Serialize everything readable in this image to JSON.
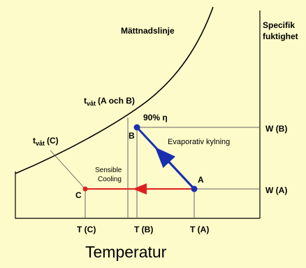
{
  "title": "Mättnadslinje",
  "right_axis": {
    "line1": "Specifik",
    "line2": "fuktighet",
    "ticks": [
      "W (B)",
      "W (A)"
    ]
  },
  "x_axis": {
    "label": "Temperatur",
    "ticks": [
      "T (C)",
      "T (B)",
      "T (A)"
    ]
  },
  "wet_bulb_ab": {
    "t": "t",
    "sub": "våt",
    "rest": "(A och B)"
  },
  "wet_bulb_c": {
    "t": "t",
    "sub": "våt",
    "rest": "(C)"
  },
  "efficiency": "90% η",
  "points": [
    "A",
    "B",
    "C"
  ],
  "evaporative": "Evaporativ kylning",
  "sensible": {
    "line1": "Sensible",
    "line2": "Cooling"
  }
}
